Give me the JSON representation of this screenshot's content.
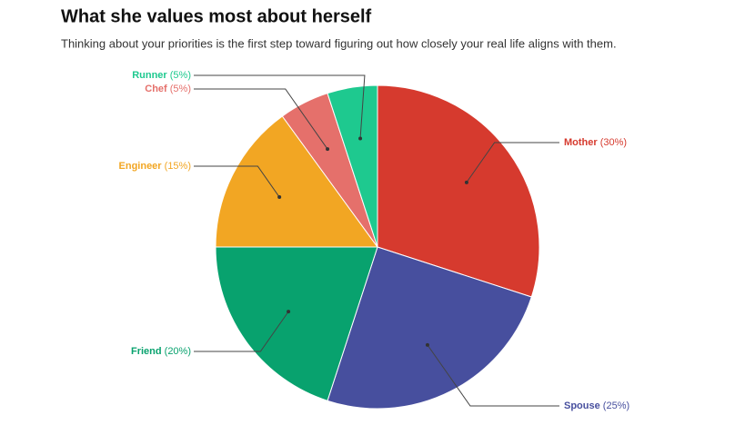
{
  "chart_data": {
    "type": "pie",
    "title": "What she values most about herself",
    "subtitle": "Thinking about your priorities is the first step toward figuring out how closely your real life aligns with them.",
    "categories": [
      "Mother",
      "Spouse",
      "Friend",
      "Engineer",
      "Chef",
      "Runner"
    ],
    "values": [
      30,
      25,
      20,
      15,
      5,
      5
    ],
    "value_labels": [
      "(30%)",
      "(25%)",
      "(20%)",
      "(15%)",
      "(5%)",
      "(5%)"
    ],
    "colors": [
      "#d63a2e",
      "#474f9e",
      "#08a26e",
      "#f2a623",
      "#e5706b",
      "#1ec98f"
    ]
  }
}
